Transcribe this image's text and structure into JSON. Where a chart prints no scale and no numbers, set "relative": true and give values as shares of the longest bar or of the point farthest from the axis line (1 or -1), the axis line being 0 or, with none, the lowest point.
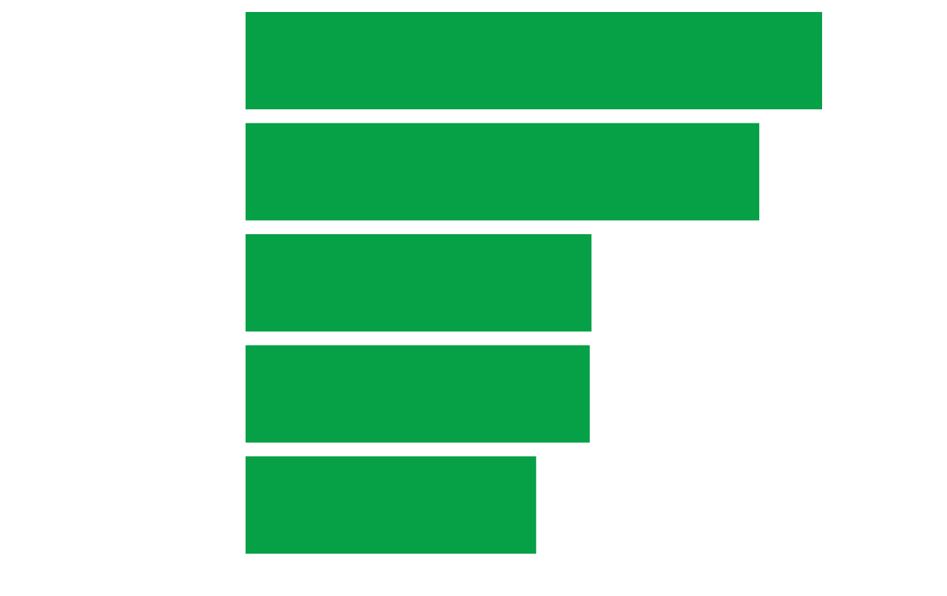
{
  "chart_data": {
    "type": "bar",
    "orientation": "horizontal",
    "relative": true,
    "categories": [
      null,
      null,
      null,
      null,
      null
    ],
    "values": [
      1,
      0.891,
      0.6,
      0.597,
      0.504
    ],
    "color": "#06a046"
  }
}
